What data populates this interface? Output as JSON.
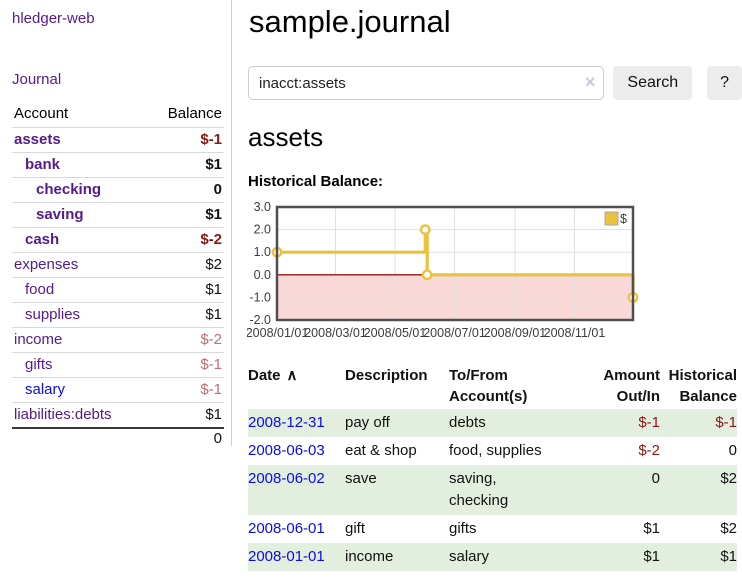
{
  "sidebar": {
    "brand": "hledger-web",
    "journal_link": "Journal",
    "accounts": {
      "header": {
        "account": "Account",
        "balance": "Balance"
      },
      "rows": [
        {
          "name": "assets",
          "depth": 0,
          "bold": true,
          "balance": "$-1",
          "balance_class": "neg"
        },
        {
          "name": "bank",
          "depth": 1,
          "bold": true,
          "balance": "$1",
          "balance_class": ""
        },
        {
          "name": "checking",
          "depth": 2,
          "bold": true,
          "balance": "0",
          "balance_class": ""
        },
        {
          "name": "saving",
          "depth": 2,
          "bold": true,
          "balance": "$1",
          "balance_class": ""
        },
        {
          "name": "cash",
          "depth": 1,
          "bold": true,
          "balance": "$-2",
          "balance_class": "neg"
        },
        {
          "name": "expenses",
          "depth": 0,
          "bold": false,
          "balance": "$2",
          "balance_class": ""
        },
        {
          "name": "food",
          "depth": 1,
          "bold": false,
          "balance": "$1",
          "balance_class": ""
        },
        {
          "name": "supplies",
          "depth": 1,
          "bold": false,
          "balance": "$1",
          "balance_class": ""
        },
        {
          "name": "income",
          "depth": 0,
          "bold": false,
          "balance": "$-2",
          "balance_class": "neg-soft"
        },
        {
          "name": "gifts",
          "depth": 1,
          "bold": false,
          "balance": "$-1",
          "balance_class": "neg-soft"
        },
        {
          "name": "salary",
          "depth": 1,
          "bold": false,
          "link": "blue",
          "balance": "$-1",
          "balance_class": "neg-soft"
        },
        {
          "name": "liabilities:debts",
          "depth": 0,
          "bold": false,
          "balance": "$1",
          "balance_class": ""
        }
      ],
      "total": "0"
    }
  },
  "main": {
    "title": "sample.journal",
    "search": {
      "value": "inacct:assets",
      "clear_icon": "×",
      "search_button": "Search",
      "help_button": "?"
    },
    "account_heading": "assets",
    "chart_label": "Historical Balance:"
  },
  "chart_data": {
    "type": "line",
    "step": true,
    "title": "Historical Balance",
    "series": [
      {
        "name": "$",
        "points": [
          {
            "date": "2008-01-01",
            "v": 1
          },
          {
            "date": "2008-06-01",
            "v": 2
          },
          {
            "date": "2008-06-03",
            "v": 0
          },
          {
            "date": "2008-12-31",
            "v": -1
          }
        ]
      }
    ],
    "xrange": [
      "2008-01-01",
      "2008-12-31"
    ],
    "ylim": [
      -2,
      3
    ],
    "yticks": [
      {
        "v": 3,
        "label": "3.0"
      },
      {
        "v": 2,
        "label": "2.0"
      },
      {
        "v": 1,
        "label": "1.0"
      },
      {
        "v": 0,
        "label": "0.0"
      },
      {
        "v": -1,
        "label": "-1.0"
      },
      {
        "v": -2,
        "label": "-2.0"
      }
    ],
    "xticks": [
      {
        "date": "2008-01-01",
        "label": "2008/01/01"
      },
      {
        "date": "2008-03-01",
        "label": "2008/03/01"
      },
      {
        "date": "2008-05-01",
        "label": "2008/05/01"
      },
      {
        "date": "2008-07-01",
        "label": "2008/07/01"
      },
      {
        "date": "2008-09-01",
        "label": "2008/09/01"
      },
      {
        "date": "2008-11-01",
        "label": "2008/11/01"
      }
    ],
    "legend": {
      "label": "$",
      "position": "top-right"
    },
    "grid": true,
    "colors": {
      "line": "#e9c23f",
      "marker_fill": "#ffffff",
      "negative_region": "#f9d8d8",
      "zero_line": "#9e1212",
      "grid": "#e0e0e0",
      "border": "#4f4f4f"
    }
  },
  "transactions": {
    "headers": {
      "date": "Date",
      "sort_icon": "∧",
      "description": "Description",
      "accounts": "To/From\nAccount(s)",
      "amount": "Amount\nOut/In",
      "balance": "Historical\nBalance"
    },
    "rows": [
      {
        "date": "2008-12-31",
        "description": "pay off",
        "accounts": "debts",
        "amount": "$-1",
        "amount_class": "neg",
        "balance": "$-1",
        "balance_class": "neg"
      },
      {
        "date": "2008-06-03",
        "description": "eat & shop",
        "accounts": "food, supplies",
        "amount": "$-2",
        "amount_class": "neg",
        "balance": "0",
        "balance_class": ""
      },
      {
        "date": "2008-06-02",
        "description": "save",
        "accounts": "saving,\nchecking",
        "amount": "0",
        "amount_class": "",
        "balance": "$2",
        "balance_class": ""
      },
      {
        "date": "2008-06-01",
        "description": "gift",
        "accounts": "gifts",
        "amount": "$1",
        "amount_class": "",
        "balance": "$2",
        "balance_class": ""
      },
      {
        "date": "2008-01-01",
        "description": "income",
        "accounts": "salary",
        "amount": "$1",
        "amount_class": "",
        "balance": "$1",
        "balance_class": ""
      }
    ]
  },
  "colors": {
    "link_purple": "#551a8b",
    "link_blue": "#0b0bee",
    "negative_strong": "#8b1717",
    "negative_soft": "#c06d78",
    "row_stripe_green": "#e2efde",
    "button_bg": "#ececec"
  }
}
